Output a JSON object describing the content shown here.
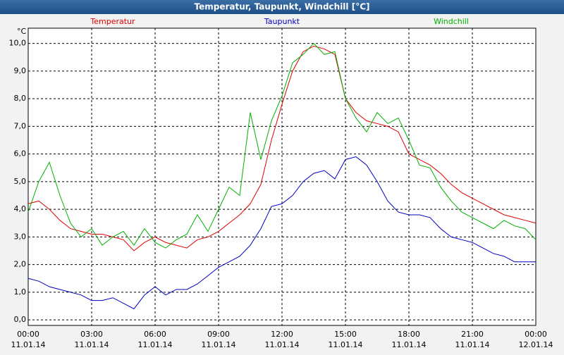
{
  "chart_data": {
    "type": "line",
    "title": "Temperatur, Taupunkt, Windchill [°C]",
    "y_label": "°C",
    "grid": true,
    "x": [
      0,
      0.5,
      1,
      1.5,
      2,
      2.5,
      3,
      3.5,
      4,
      4.5,
      5,
      5.5,
      6,
      6.5,
      7,
      7.5,
      8,
      8.5,
      9,
      9.5,
      10,
      10.5,
      11,
      11.5,
      12,
      12.5,
      13,
      13.5,
      14,
      14.5,
      15,
      15.5,
      16,
      16.5,
      17,
      17.5,
      18,
      18.5,
      19,
      19.5,
      20,
      20.5,
      21,
      21.5,
      22,
      22.5,
      23,
      23.5,
      24
    ],
    "xlim": [
      0,
      24
    ],
    "xticks": [
      {
        "value": 0,
        "label": "00:00",
        "date": "11.01.14"
      },
      {
        "value": 3,
        "label": "03:00",
        "date": "11.01.14"
      },
      {
        "value": 6,
        "label": "06:00",
        "date": "11.01.14"
      },
      {
        "value": 9,
        "label": "09:00",
        "date": "11.01.14"
      },
      {
        "value": 12,
        "label": "12:00",
        "date": "11.01.14"
      },
      {
        "value": 15,
        "label": "15:00",
        "date": "11.01.14"
      },
      {
        "value": 18,
        "label": "18:00",
        "date": "11.01.14"
      },
      {
        "value": 21,
        "label": "21:00",
        "date": "11.01.14"
      },
      {
        "value": 24,
        "label": "00:00",
        "date": "12.01.14"
      }
    ],
    "ylim": [
      -0.2,
      10.55
    ],
    "yticks": [
      {
        "value": 0,
        "label": "0,0"
      },
      {
        "value": 1,
        "label": "1,0"
      },
      {
        "value": 2,
        "label": "2,0"
      },
      {
        "value": 3,
        "label": "3,0"
      },
      {
        "value": 4,
        "label": "4,0"
      },
      {
        "value": 5,
        "label": "5,0"
      },
      {
        "value": 6,
        "label": "6,0"
      },
      {
        "value": 7,
        "label": "7,0"
      },
      {
        "value": 8,
        "label": "8,0"
      },
      {
        "value": 9,
        "label": "9,0"
      },
      {
        "value": 10,
        "label": "10,0"
      }
    ],
    "series": [
      {
        "name": "Temperatur",
        "color": "#e00000",
        "values": [
          4.2,
          4.3,
          4.0,
          3.6,
          3.3,
          3.2,
          3.1,
          3.1,
          3.0,
          2.9,
          2.5,
          2.8,
          3.0,
          2.8,
          2.7,
          2.6,
          2.9,
          3.0,
          3.2,
          3.5,
          3.8,
          4.2,
          4.9,
          6.5,
          7.8,
          9.0,
          9.7,
          9.9,
          9.8,
          9.6,
          8.0,
          7.5,
          7.2,
          7.1,
          7.0,
          6.8,
          6.0,
          5.8,
          5.6,
          5.3,
          4.9,
          4.6,
          4.4,
          4.2,
          4.0,
          3.8,
          3.7,
          3.6,
          3.5
        ]
      },
      {
        "name": "Taupunkt",
        "color": "#0000c0",
        "values": [
          1.5,
          1.4,
          1.2,
          1.1,
          1.0,
          0.9,
          0.7,
          0.7,
          0.8,
          0.6,
          0.4,
          0.9,
          1.2,
          0.9,
          1.1,
          1.1,
          1.3,
          1.6,
          1.9,
          2.1,
          2.3,
          2.7,
          3.3,
          4.1,
          4.2,
          4.5,
          5.0,
          5.3,
          5.4,
          5.1,
          5.8,
          5.9,
          5.6,
          5.0,
          4.3,
          3.9,
          3.8,
          3.8,
          3.7,
          3.3,
          3.0,
          2.9,
          2.8,
          2.6,
          2.4,
          2.3,
          2.1,
          2.1,
          2.1
        ]
      },
      {
        "name": "Windchill",
        "color": "#00b000",
        "values": [
          3.9,
          5.0,
          5.7,
          4.5,
          3.5,
          3.0,
          3.3,
          2.7,
          3.0,
          3.2,
          2.7,
          3.3,
          2.8,
          2.6,
          2.9,
          3.1,
          3.8,
          3.2,
          4.0,
          4.8,
          4.5,
          7.5,
          5.8,
          7.2,
          8.1,
          9.3,
          9.6,
          10.0,
          9.6,
          9.7,
          8.0,
          7.3,
          6.8,
          7.5,
          7.1,
          7.3,
          6.5,
          5.6,
          5.5,
          4.8,
          4.3,
          3.9,
          3.7,
          3.5,
          3.3,
          3.6,
          3.4,
          3.3,
          2.9
        ]
      }
    ]
  }
}
